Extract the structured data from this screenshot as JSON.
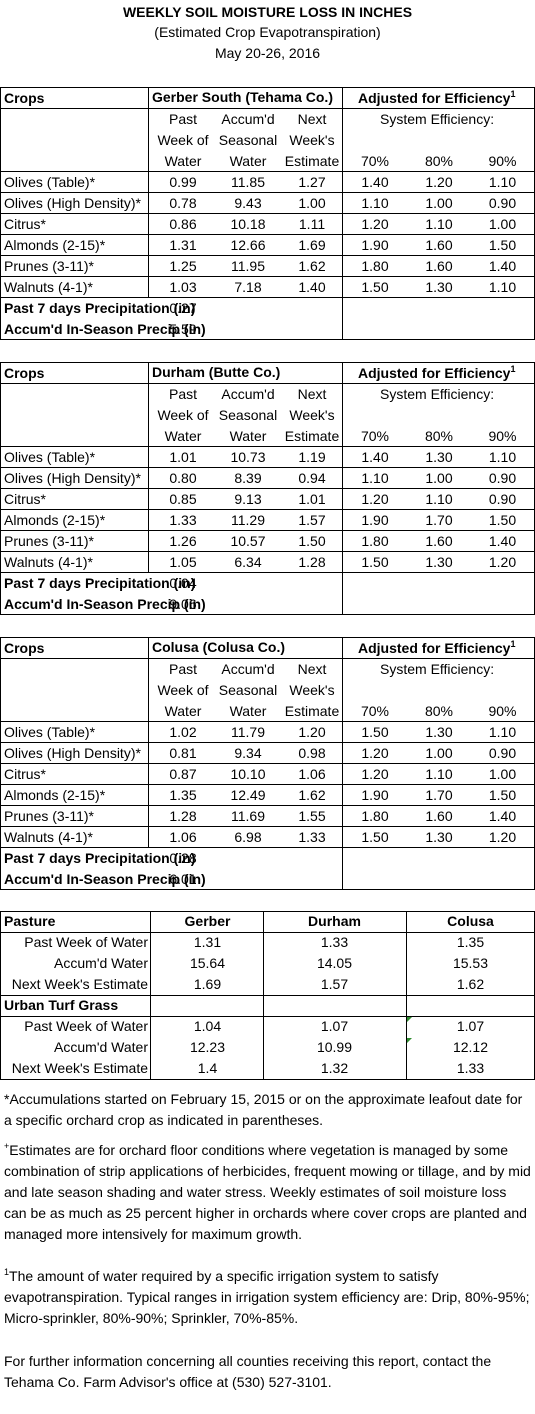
{
  "header": {
    "title": "WEEKLY SOIL MOISTURE LOSS IN INCHES",
    "subtitle": "(Estimated Crop Evapotranspiration)",
    "date": "May 20-26, 2016"
  },
  "col_headers": {
    "crops": "Crops",
    "past1": "Past",
    "past2": "Week of",
    "past3": "Water",
    "acc1": "Accum'd",
    "acc2": "Seasonal",
    "acc3": "Water",
    "next1": "Next",
    "next2": "Week's",
    "next3": "Estimate",
    "adjusted": "Adjusted for Efficiency",
    "adjusted_sup": "1",
    "system": "System Efficiency:",
    "e70": "70%",
    "e80": "80%",
    "e90": "90%",
    "precip7": "Past 7 days Precipitation (in)",
    "precip_season": "Accum'd In-Season Precip (in)"
  },
  "sections": [
    {
      "location": "Gerber South (Tehama Co.)",
      "rows": [
        {
          "crop": "Olives (Table)*",
          "past": "0.99",
          "accum": "11.85",
          "next": "1.27",
          "e70": "1.40",
          "e80": "1.20",
          "e90": "1.10"
        },
        {
          "crop": "Olives (High Density)*",
          "past": "0.78",
          "accum": "9.43",
          "next": "1.00",
          "e70": "1.10",
          "e80": "1.00",
          "e90": "0.90"
        },
        {
          "crop": "Citrus*",
          "past": "0.86",
          "accum": "10.18",
          "next": "1.11",
          "e70": "1.20",
          "e80": "1.10",
          "e90": "1.00"
        },
        {
          "crop": "Almonds (2-15)*",
          "past": "1.31",
          "accum": "12.66",
          "next": "1.69",
          "e70": "1.90",
          "e80": "1.60",
          "e90": "1.50"
        },
        {
          "crop": "Prunes (3-11)*",
          "past": "1.25",
          "accum": "11.95",
          "next": "1.62",
          "e70": "1.80",
          "e80": "1.60",
          "e90": "1.40"
        },
        {
          "crop": "Walnuts (4-1)*",
          "past": "1.03",
          "accum": "7.18",
          "next": "1.40",
          "e70": "1.50",
          "e80": "1.30",
          "e90": "1.10"
        }
      ],
      "precip7": "0.27",
      "precip_season": "5.59"
    },
    {
      "location": "Durham (Butte Co.)",
      "rows": [
        {
          "crop": "Olives (Table)*",
          "past": "1.01",
          "accum": "10.73",
          "next": "1.19",
          "e70": "1.40",
          "e80": "1.30",
          "e90": "1.10"
        },
        {
          "crop": "Olives (High Density)*",
          "past": "0.80",
          "accum": "8.39",
          "next": "0.94",
          "e70": "1.10",
          "e80": "1.00",
          "e90": "0.90"
        },
        {
          "crop": "Citrus*",
          "past": "0.85",
          "accum": "9.13",
          "next": "1.01",
          "e70": "1.20",
          "e80": "1.10",
          "e90": "0.90"
        },
        {
          "crop": "Almonds (2-15)*",
          "past": "1.33",
          "accum": "11.29",
          "next": "1.57",
          "e70": "1.90",
          "e80": "1.70",
          "e90": "1.50"
        },
        {
          "crop": "Prunes (3-11)*",
          "past": "1.26",
          "accum": "10.57",
          "next": "1.50",
          "e70": "1.80",
          "e80": "1.60",
          "e90": "1.40"
        },
        {
          "crop": "Walnuts (4-1)*",
          "past": "1.05",
          "accum": "6.34",
          "next": "1.28",
          "e70": "1.50",
          "e80": "1.30",
          "e90": "1.20"
        }
      ],
      "precip7": "0.04",
      "precip_season": "9.06"
    },
    {
      "location": "Colusa (Colusa Co.)",
      "rows": [
        {
          "crop": "Olives (Table)*",
          "past": "1.02",
          "accum": "11.79",
          "next": "1.20",
          "e70": "1.50",
          "e80": "1.30",
          "e90": "1.10"
        },
        {
          "crop": "Olives (High Density)*",
          "past": "0.81",
          "accum": "9.34",
          "next": "0.98",
          "e70": "1.20",
          "e80": "1.00",
          "e90": "0.90"
        },
        {
          "crop": "Citrus*",
          "past": "0.87",
          "accum": "10.10",
          "next": "1.06",
          "e70": "1.20",
          "e80": "1.10",
          "e90": "1.00"
        },
        {
          "crop": "Almonds (2-15)*",
          "past": "1.35",
          "accum": "12.49",
          "next": "1.62",
          "e70": "1.90",
          "e80": "1.70",
          "e90": "1.50"
        },
        {
          "crop": "Prunes (3-11)*",
          "past": "1.28",
          "accum": "11.69",
          "next": "1.55",
          "e70": "1.80",
          "e80": "1.60",
          "e90": "1.40"
        },
        {
          "crop": "Walnuts (4-1)*",
          "past": "1.06",
          "accum": "6.98",
          "next": "1.33",
          "e70": "1.50",
          "e80": "1.30",
          "e90": "1.20"
        }
      ],
      "precip7": "0.28",
      "precip_season": "6.01"
    }
  ],
  "pasture": {
    "title": "Pasture",
    "locations": [
      "Gerber",
      "Durham",
      "Colusa"
    ],
    "rows": [
      {
        "label": "Past Week of Water",
        "values": [
          "1.31",
          "1.33",
          "1.35"
        ]
      },
      {
        "label": "Accum'd Water",
        "values": [
          "15.64",
          "14.05",
          "15.53"
        ]
      },
      {
        "label": "Next Week's Estimate",
        "values": [
          "1.69",
          "1.57",
          "1.62"
        ]
      }
    ]
  },
  "turf": {
    "title": "Urban Turf Grass",
    "rows": [
      {
        "label": "Past Week of Water",
        "values": [
          "1.04",
          "1.07",
          "1.07"
        ]
      },
      {
        "label": "Accum'd Water",
        "values": [
          "12.23",
          "10.99",
          "12.12"
        ]
      },
      {
        "label": "Next Week's Estimate",
        "values": [
          "1.4",
          "1.32",
          "1.33"
        ]
      }
    ]
  },
  "notes": {
    "n1": "*Accumulations started on February 15, 2015 or on the approximate leafout date for a specific orchard crop as indicated in parentheses.",
    "n2_mark": "+",
    "n2": "Estimates are for orchard floor conditions where vegetation is managed by some combination of strip applications of herbicides, frequent mowing or tillage, and by mid and late season shading and water stress.  Weekly estimates of soil moisture loss can be as much as 25 percent higher in orchards where cover crops are planted and managed more intensively for maximum growth.",
    "n3_mark": "1",
    "n3": "The amount of water required by a specific irrigation system to satisfy evapotranspiration. Typical ranges in irrigation system efficiency are: Drip, 80%-95%; Micro-sprinkler, 80%-90%; Sprinkler, 70%-85%.",
    "n4": "For further information concerning all counties receiving this report, contact the Tehama Co. Farm Advisor's office at (530) 527-3101."
  }
}
